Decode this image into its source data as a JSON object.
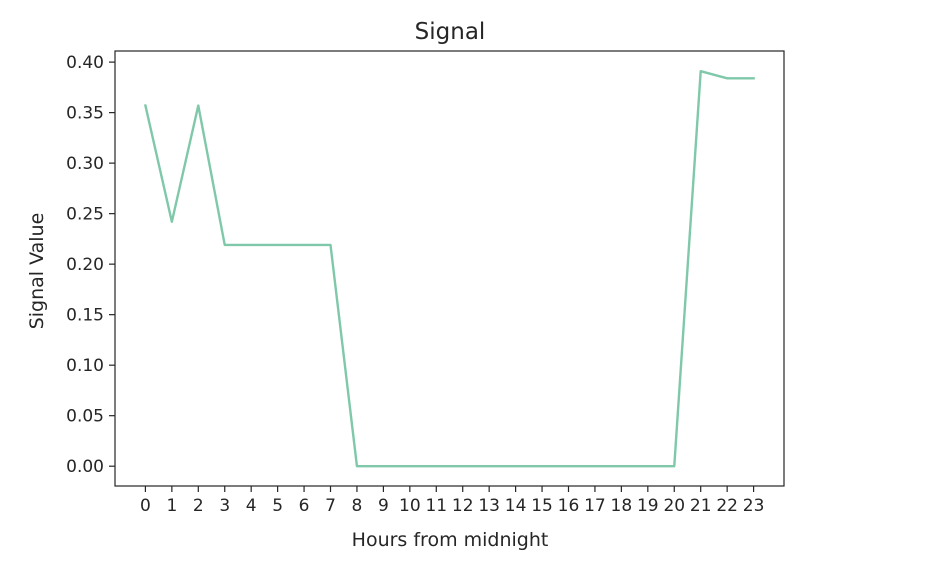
{
  "chart_data": {
    "type": "line",
    "title": "Signal",
    "xlabel": "Hours from midnight",
    "ylabel": "Signal Value",
    "x": [
      0,
      1,
      2,
      3,
      4,
      5,
      6,
      7,
      8,
      9,
      10,
      11,
      12,
      13,
      14,
      15,
      16,
      17,
      18,
      19,
      20,
      21,
      22,
      23
    ],
    "series": [
      {
        "values": [
          0.357,
          0.242,
          0.357,
          0.219,
          0.219,
          0.219,
          0.219,
          0.219,
          0.0,
          0.0,
          0.0,
          0.0,
          0.0,
          0.0,
          0.0,
          0.0,
          0.0,
          0.0,
          0.0,
          0.0,
          0.0,
          0.391,
          0.384,
          0.384
        ],
        "color": "#7fc8a9"
      }
    ],
    "xticks": [
      "0",
      "1",
      "2",
      "3",
      "4",
      "5",
      "6",
      "7",
      "8",
      "9",
      "10",
      "11",
      "12",
      "13",
      "14",
      "15",
      "16",
      "17",
      "18",
      "19",
      "20",
      "21",
      "22",
      "23"
    ],
    "yticks": [
      "0.00",
      "0.05",
      "0.10",
      "0.15",
      "0.20",
      "0.25",
      "0.30",
      "0.35",
      "0.40"
    ],
    "ytick_values": [
      0,
      0.05,
      0.1,
      0.15,
      0.2,
      0.25,
      0.3,
      0.35,
      0.4
    ],
    "xlim": [
      -1.15,
      24.15
    ],
    "ylim": [
      -0.0196,
      0.411
    ],
    "grid": false,
    "legend": "none"
  }
}
